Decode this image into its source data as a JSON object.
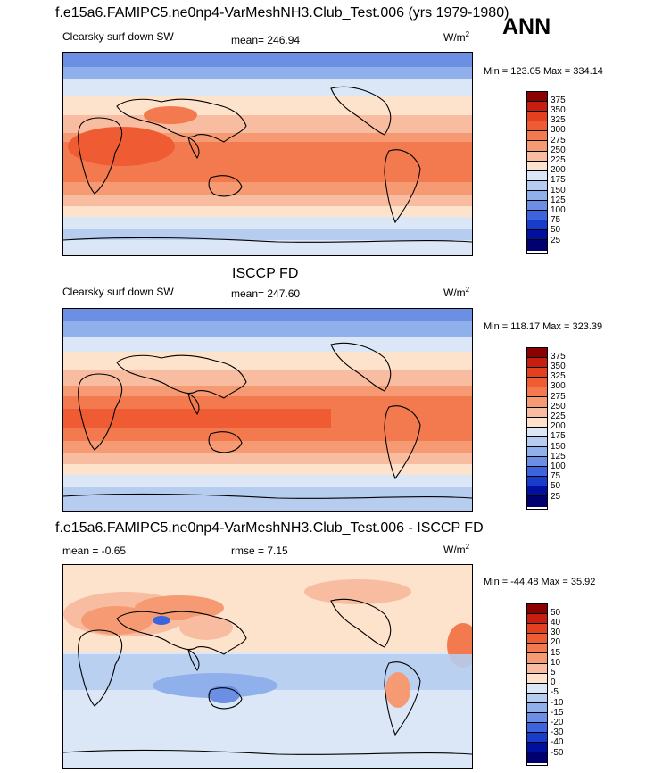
{
  "figure": {
    "title": "f.e15a6.FAMIPC5.ne0np4-VarMeshNH3.Club_Test.006 (yrs 1979-1980)",
    "season": "ANN"
  },
  "panels": [
    {
      "id": "model",
      "heading": "",
      "left_label": "Clearsky surf down SW",
      "center_label": "mean= 246.94",
      "units_base": "W/m",
      "units_exp": "2",
      "minmax": "Min = 123.05 Max = 334.14",
      "levels": [
        "375",
        "350",
        "325",
        "300",
        "275",
        "250",
        "225",
        "200",
        "175",
        "150",
        "125",
        "100",
        "75",
        "50",
        "25"
      ]
    },
    {
      "id": "obs",
      "heading": "ISCCP FD",
      "left_label": "Clearsky surf down SW",
      "center_label": "mean= 247.60",
      "units_base": "W/m",
      "units_exp": "2",
      "minmax": "Min = 118.17 Max = 323.39",
      "levels": [
        "375",
        "350",
        "325",
        "300",
        "275",
        "250",
        "225",
        "200",
        "175",
        "150",
        "125",
        "100",
        "75",
        "50",
        "25"
      ]
    },
    {
      "id": "diff",
      "heading": "f.e15a6.FAMIPC5.ne0np4-VarMeshNH3.Club_Test.006 - ISCCP FD",
      "left_label": "mean =  -0.65",
      "center_label": "rmse =   7.15",
      "units_base": "W/m",
      "units_exp": "2",
      "minmax": "Min = -44.48 Max =  35.92",
      "levels": [
        "50",
        "40",
        "30",
        "20",
        "15",
        "10",
        "5",
        "0",
        "-5",
        "-10",
        "-15",
        "-20",
        "-30",
        "-40",
        "-50"
      ]
    }
  ],
  "colors": {
    "scale": [
      "#8b0000",
      "#c81e10",
      "#e2401f",
      "#ef5b32",
      "#f27a4e",
      "#f59a72",
      "#f8bca0",
      "#fde2cc",
      "#dbe7f7",
      "#b6cdf0",
      "#8fb0ea",
      "#6a8fe3",
      "#3d64dd",
      "#1a3ccc",
      "#00109e",
      "#00006e"
    ],
    "coast": "#000000"
  }
}
